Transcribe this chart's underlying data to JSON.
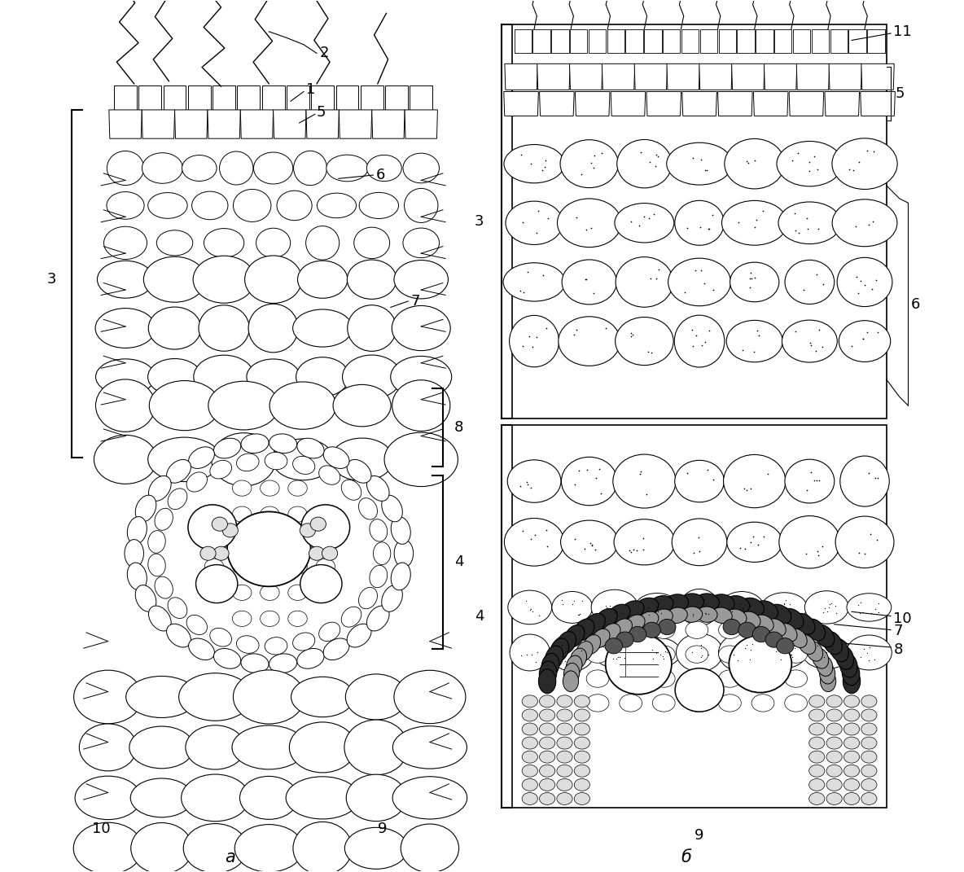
{
  "fig_width": 11.84,
  "fig_height": 10.71,
  "bg_color": "#ffffff",
  "label_fontsize": 13,
  "caption_fontsize": 15
}
